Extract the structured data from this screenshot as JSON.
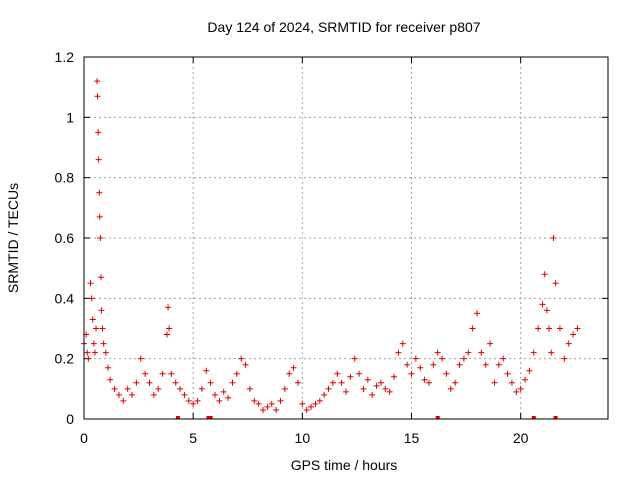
{
  "chart_data": {
    "type": "scatter",
    "title": "Day 124 of 2024, SRMTID for receiver p807",
    "xlabel": "GPS time / hours",
    "ylabel": "SRMTID / TECUs",
    "xlim": [
      0,
      24
    ],
    "ylim": [
      0,
      1.2
    ],
    "x_ticks": [
      0,
      5,
      10,
      15,
      20
    ],
    "x_tick_labels": [
      "0",
      "5",
      "10",
      "15",
      "20"
    ],
    "y_ticks": [
      0,
      0.2,
      0.4,
      0.6,
      0.8,
      1.0,
      1.2
    ],
    "y_tick_labels": [
      "0",
      "0.2",
      "0.4",
      "0.6",
      "0.8",
      "1",
      "1.2"
    ],
    "grid": true,
    "marker": "+",
    "color": "#e00000",
    "series": [
      {
        "name": "SRMTID",
        "x": [
          0.0,
          0.1,
          0.15,
          0.2,
          0.3,
          0.35,
          0.4,
          0.45,
          0.5,
          0.55,
          0.6,
          0.62,
          0.65,
          0.67,
          0.7,
          0.72,
          0.75,
          0.78,
          0.8,
          0.85,
          0.9,
          1.0,
          1.1,
          1.2,
          1.4,
          1.6,
          1.8,
          2.0,
          2.2,
          2.4,
          2.6,
          2.8,
          3.0,
          3.2,
          3.4,
          3.6,
          3.8,
          3.85,
          3.9,
          4.0,
          4.2,
          4.4,
          4.6,
          4.8,
          5.0,
          5.2,
          5.4,
          5.6,
          5.8,
          6.0,
          6.2,
          6.4,
          6.6,
          6.8,
          7.0,
          7.2,
          7.4,
          7.6,
          7.8,
          8.0,
          8.2,
          8.4,
          8.6,
          8.8,
          9.0,
          9.2,
          9.4,
          9.6,
          9.8,
          10.0,
          10.2,
          10.4,
          10.6,
          10.8,
          11.0,
          11.2,
          11.4,
          11.6,
          11.8,
          12.0,
          12.2,
          12.4,
          12.6,
          12.8,
          13.0,
          13.2,
          13.4,
          13.6,
          13.8,
          14.0,
          14.2,
          14.4,
          14.6,
          14.8,
          15.0,
          15.2,
          15.4,
          15.6,
          15.8,
          16.0,
          16.2,
          16.4,
          16.6,
          16.8,
          17.0,
          17.2,
          17.4,
          17.6,
          17.8,
          18.0,
          18.2,
          18.4,
          18.6,
          18.8,
          19.0,
          19.2,
          19.4,
          19.6,
          19.8,
          20.0,
          20.2,
          20.4,
          20.6,
          20.8,
          21.0,
          21.1,
          21.2,
          21.3,
          21.4,
          21.5,
          21.6,
          21.8,
          22.0,
          22.2,
          22.4,
          22.6
        ],
        "y": [
          0.25,
          0.28,
          0.22,
          0.2,
          0.45,
          0.4,
          0.33,
          0.25,
          0.22,
          0.3,
          1.12,
          1.07,
          0.95,
          0.86,
          0.75,
          0.67,
          0.6,
          0.47,
          0.36,
          0.3,
          0.25,
          0.22,
          0.17,
          0.13,
          0.1,
          0.08,
          0.06,
          0.1,
          0.08,
          0.12,
          0.2,
          0.15,
          0.12,
          0.08,
          0.1,
          0.15,
          0.28,
          0.37,
          0.3,
          0.15,
          0.12,
          0.1,
          0.08,
          0.06,
          0.05,
          0.06,
          0.1,
          0.16,
          0.12,
          0.08,
          0.06,
          0.09,
          0.07,
          0.12,
          0.15,
          0.2,
          0.18,
          0.1,
          0.06,
          0.05,
          0.03,
          0.04,
          0.05,
          0.03,
          0.06,
          0.1,
          0.15,
          0.17,
          0.12,
          0.05,
          0.03,
          0.04,
          0.05,
          0.06,
          0.08,
          0.1,
          0.12,
          0.15,
          0.12,
          0.09,
          0.14,
          0.2,
          0.15,
          0.1,
          0.13,
          0.08,
          0.11,
          0.12,
          0.1,
          0.09,
          0.14,
          0.22,
          0.25,
          0.18,
          0.15,
          0.2,
          0.17,
          0.13,
          0.12,
          0.18,
          0.22,
          0.2,
          0.15,
          0.1,
          0.12,
          0.18,
          0.2,
          0.22,
          0.3,
          0.35,
          0.22,
          0.18,
          0.25,
          0.12,
          0.18,
          0.2,
          0.15,
          0.12,
          0.09,
          0.1,
          0.13,
          0.16,
          0.22,
          0.3,
          0.38,
          0.48,
          0.36,
          0.3,
          0.22,
          0.6,
          0.45,
          0.3,
          0.2,
          0.25,
          0.28,
          0.3
        ]
      }
    ],
    "gap_markers_x": [
      4.3,
      5.7,
      5.8,
      16.2,
      20.6,
      21.6
    ]
  }
}
